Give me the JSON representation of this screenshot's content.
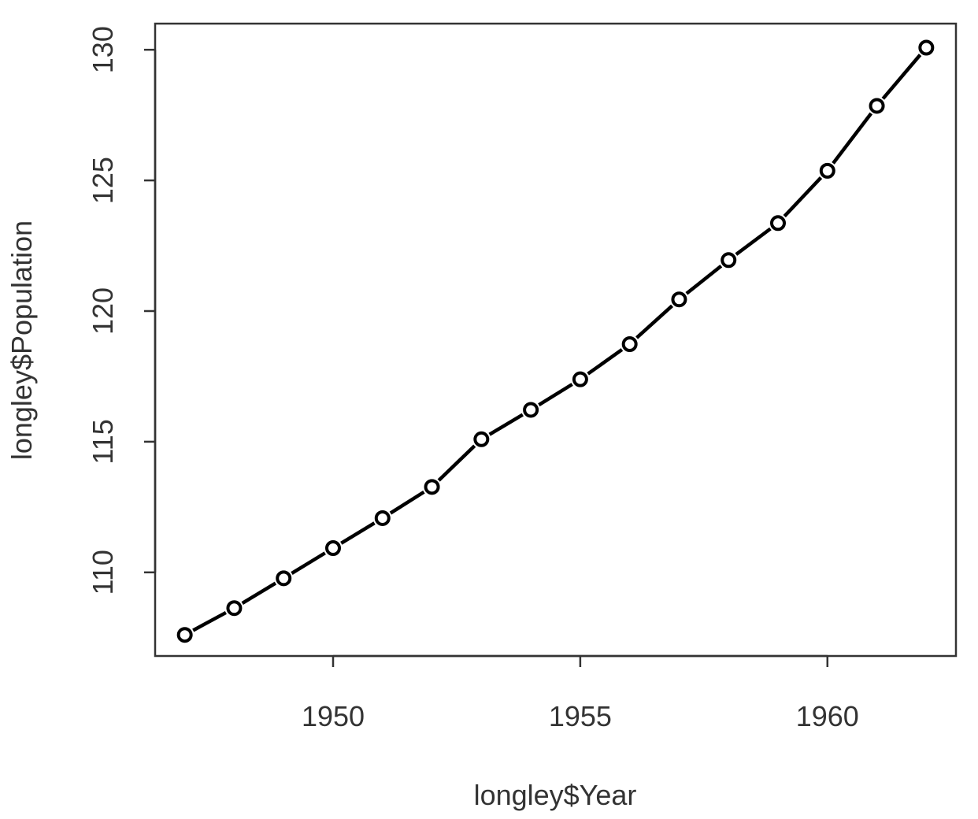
{
  "chart_data": {
    "type": "line",
    "line_style": "dashed with open circle markers",
    "xlabel": "longley$Year",
    "ylabel": "longley$Population",
    "x_ticks": [
      1950,
      1955,
      1960
    ],
    "y_ticks": [
      110,
      115,
      120,
      125,
      130
    ],
    "xlim": [
      1946.4,
      1962.6
    ],
    "ylim": [
      106.8,
      131.0
    ],
    "grid": false,
    "x": [
      1947,
      1948,
      1949,
      1950,
      1951,
      1952,
      1953,
      1954,
      1955,
      1956,
      1957,
      1958,
      1959,
      1960,
      1961,
      1962
    ],
    "y": [
      107.608,
      108.632,
      109.773,
      110.929,
      112.075,
      113.27,
      115.094,
      116.219,
      117.388,
      118.734,
      120.445,
      121.95,
      123.366,
      125.368,
      127.852,
      130.081
    ]
  }
}
